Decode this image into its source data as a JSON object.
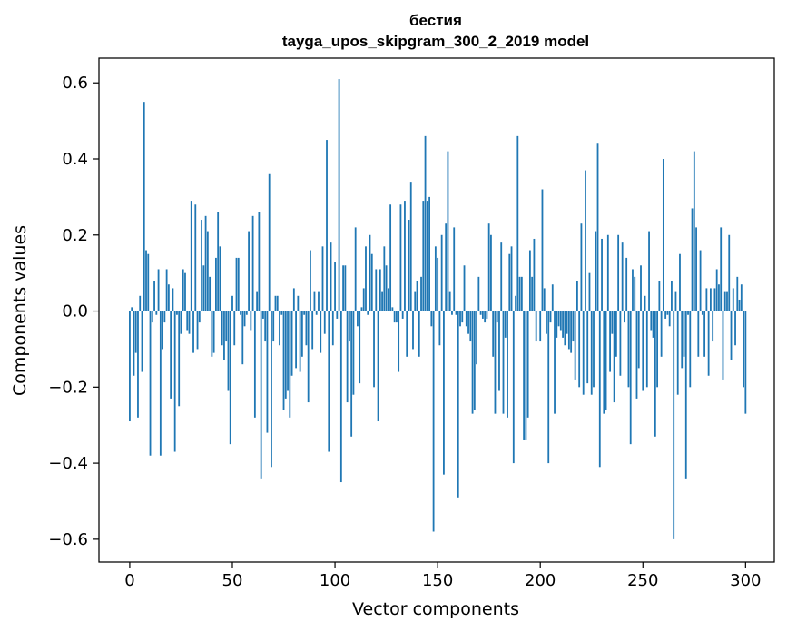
{
  "colors": {
    "bar": "#1f77b4",
    "axis": "#000000",
    "background": "#ffffff"
  },
  "chart_data": {
    "type": "bar",
    "title_line1": "бестия",
    "title_line2": "tayga_upos_skipgram_300_2_2019 model",
    "xlabel": "Vector components",
    "ylabel": "Components values",
    "xlim": [
      -15,
      314
    ],
    "ylim": [
      -0.66,
      0.665
    ],
    "xticks": [
      0,
      50,
      100,
      150,
      200,
      250,
      300
    ],
    "yticks": [
      -0.6,
      -0.4,
      -0.2,
      0.0,
      0.2,
      0.4,
      0.6
    ],
    "xtick_labels": [
      "0",
      "50",
      "100",
      "150",
      "200",
      "250",
      "300"
    ],
    "ytick_labels": [
      "−0.6",
      "−0.4",
      "−0.2",
      "0.0",
      "0.2",
      "0.4",
      "0.6"
    ],
    "values": [
      -0.29,
      0.01,
      -0.17,
      -0.11,
      -0.28,
      0.04,
      -0.16,
      0.55,
      0.16,
      0.15,
      -0.38,
      -0.03,
      0.08,
      -0.01,
      0.11,
      -0.38,
      -0.1,
      -0.03,
      0.11,
      0.07,
      -0.23,
      0.06,
      -0.37,
      -0.01,
      -0.25,
      -0.06,
      0.11,
      0.1,
      -0.05,
      -0.06,
      0.29,
      -0.11,
      0.28,
      -0.1,
      -0.03,
      0.24,
      0.12,
      0.25,
      0.21,
      0.09,
      -0.12,
      -0.11,
      0.14,
      0.26,
      0.17,
      -0.09,
      -0.13,
      -0.08,
      -0.21,
      -0.35,
      0.04,
      -0.09,
      0.14,
      0.14,
      -0.01,
      -0.14,
      -0.04,
      -0.01,
      0.21,
      -0.05,
      0.25,
      -0.28,
      0.05,
      0.26,
      -0.44,
      -0.02,
      -0.08,
      -0.32,
      0.36,
      -0.41,
      -0.08,
      0.04,
      0.04,
      -0.09,
      -0.01,
      -0.26,
      -0.23,
      -0.21,
      -0.28,
      -0.17,
      0.06,
      -0.15,
      0.04,
      -0.16,
      -0.12,
      -0.01,
      -0.09,
      -0.24,
      0.16,
      -0.1,
      0.05,
      -0.01,
      0.05,
      -0.11,
      0.17,
      -0.06,
      0.45,
      -0.37,
      0.18,
      -0.09,
      0.13,
      -0.02,
      0.61,
      -0.45,
      0.12,
      0.12,
      -0.24,
      -0.08,
      -0.33,
      -0.22,
      0.22,
      -0.04,
      -0.19,
      0.01,
      0.06,
      0.17,
      -0.01,
      0.2,
      0.15,
      -0.2,
      0.11,
      -0.29,
      0.11,
      0.05,
      0.17,
      0.12,
      0.06,
      0.28,
      0.01,
      -0.03,
      -0.03,
      -0.16,
      0.28,
      -0.02,
      0.29,
      -0.12,
      0.24,
      0.34,
      -0.1,
      0.05,
      0.08,
      -0.12,
      0.09,
      0.29,
      0.46,
      0.29,
      0.3,
      -0.04,
      -0.58,
      0.17,
      0.14,
      -0.09,
      0.2,
      -0.43,
      0.23,
      0.42,
      0.05,
      -0.01,
      0.22,
      -0.01,
      -0.49,
      -0.04,
      -0.03,
      0.12,
      -0.04,
      -0.06,
      -0.08,
      -0.27,
      -0.26,
      -0.14,
      0.09,
      -0.01,
      -0.02,
      -0.03,
      -0.02,
      0.23,
      0.2,
      -0.12,
      -0.27,
      -0.03,
      -0.21,
      0.18,
      -0.27,
      -0.07,
      -0.28,
      0.15,
      0.17,
      -0.4,
      0.04,
      0.46,
      0.09,
      0.09,
      -0.34,
      -0.34,
      -0.28,
      0.16,
      0.09,
      0.19,
      -0.08,
      0.0,
      -0.08,
      0.32,
      0.06,
      -0.06,
      -0.4,
      -0.03,
      0.07,
      -0.27,
      -0.07,
      -0.04,
      -0.05,
      -0.07,
      -0.09,
      -0.06,
      -0.1,
      -0.11,
      -0.08,
      -0.18,
      0.08,
      -0.2,
      0.23,
      -0.22,
      0.37,
      -0.19,
      0.1,
      -0.22,
      -0.2,
      0.21,
      0.44,
      -0.41,
      0.19,
      -0.27,
      -0.26,
      0.2,
      -0.16,
      -0.06,
      -0.24,
      -0.12,
      0.2,
      -0.17,
      0.18,
      -0.03,
      0.14,
      -0.2,
      -0.35,
      0.11,
      0.09,
      -0.23,
      -0.15,
      0.12,
      -0.21,
      0.04,
      -0.2,
      0.21,
      -0.05,
      -0.07,
      -0.33,
      -0.2,
      0.08,
      -0.12,
      0.4,
      -0.02,
      -0.01,
      -0.04,
      0.08,
      -0.6,
      0.05,
      -0.22,
      0.15,
      -0.15,
      -0.12,
      -0.44,
      -0.01,
      -0.2,
      0.27,
      0.42,
      0.22,
      -0.12,
      0.16,
      -0.01,
      -0.12,
      0.06,
      -0.17,
      0.06,
      -0.08,
      0.06,
      0.11,
      0.07,
      0.22,
      -0.18,
      0.05,
      0.05,
      0.2,
      -0.13,
      0.06,
      -0.09,
      0.09,
      0.03,
      0.07,
      -0.2,
      -0.27
    ]
  }
}
